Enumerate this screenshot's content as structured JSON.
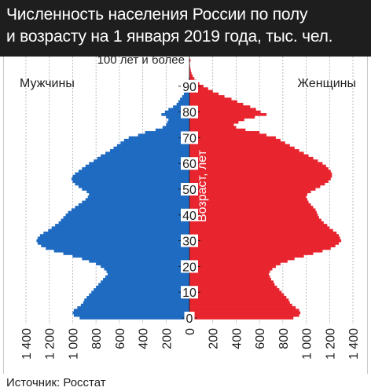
{
  "header": {
    "title_line1": "Численность населения России по полу",
    "title_line2": "и возрасту на 1 января 2019 года, тыс. чел."
  },
  "source": "Источник: Росстат",
  "colors": {
    "male": "#1f6bc2",
    "female": "#e8252f",
    "title_bg": "#1e1e1e",
    "grid": "#9aa0a6"
  },
  "chart_data": {
    "type": "bar",
    "orientation": "horizontal",
    "layout": "population-pyramid",
    "title": "Численность населения России по полу и возрасту на 1 января 2019 года, тыс. чел.",
    "ylabel": "Возраст, лет",
    "top_category_label": "100 лет и более",
    "y_ticks": [
      0,
      10,
      20,
      30,
      40,
      50,
      60,
      70,
      80,
      90
    ],
    "x_ticks_left": [
      "1 400",
      "1 200",
      "1 000",
      "800",
      "600",
      "400",
      "200"
    ],
    "x_ticks_center": "0",
    "x_ticks_right": [
      "200",
      "400",
      "600",
      "800",
      "1 000",
      "1 200",
      "1 400"
    ],
    "xlim": [
      0,
      1400
    ],
    "grid": true,
    "series": [
      {
        "name": "Мужчины",
        "ages": "0..100",
        "values": [
          940,
          990,
          1000,
          990,
          960,
          930,
          910,
          900,
          880,
          860,
          840,
          820,
          800,
          780,
          760,
          740,
          720,
          700,
          710,
          730,
          760,
          800,
          860,
          920,
          1000,
          1080,
          1160,
          1230,
          1270,
          1300,
          1310,
          1300,
          1280,
          1250,
          1210,
          1180,
          1150,
          1120,
          1100,
          1080,
          1060,
          1040,
          1010,
          980,
          950,
          920,
          890,
          870,
          860,
          880,
          920,
          950,
          980,
          1000,
          1010,
          1000,
          980,
          950,
          920,
          890,
          860,
          820,
          790,
          760,
          720,
          680,
          650,
          620,
          590,
          560,
          520,
          440,
          380,
          290,
          230,
          200,
          190,
          180,
          200,
          240,
          210,
          180,
          140,
          110,
          95,
          80,
          62,
          48,
          37,
          28,
          20,
          13,
          8,
          5,
          3,
          2,
          1,
          1,
          1,
          0,
          2
        ]
      },
      {
        "name": "Женщины",
        "ages": "0..100",
        "values": [
          890,
          940,
          950,
          940,
          910,
          880,
          860,
          850,
          830,
          810,
          790,
          770,
          750,
          730,
          720,
          700,
          690,
          680,
          690,
          710,
          740,
          780,
          840,
          900,
          980,
          1060,
          1140,
          1210,
          1250,
          1280,
          1300,
          1290,
          1280,
          1260,
          1230,
          1200,
          1180,
          1150,
          1130,
          1110,
          1100,
          1090,
          1080,
          1060,
          1040,
          1020,
          1010,
          1000,
          1010,
          1040,
          1080,
          1120,
          1160,
          1190,
          1210,
          1220,
          1220,
          1210,
          1190,
          1170,
          1140,
          1100,
          1060,
          1020,
          980,
          940,
          900,
          860,
          820,
          780,
          740,
          660,
          600,
          480,
          400,
          380,
          420,
          470,
          560,
          660,
          610,
          570,
          520,
          460,
          410,
          360,
          300,
          250,
          200,
          160,
          120,
          85,
          60,
          42,
          28,
          18,
          12,
          8,
          5,
          3,
          9
        ]
      }
    ]
  }
}
